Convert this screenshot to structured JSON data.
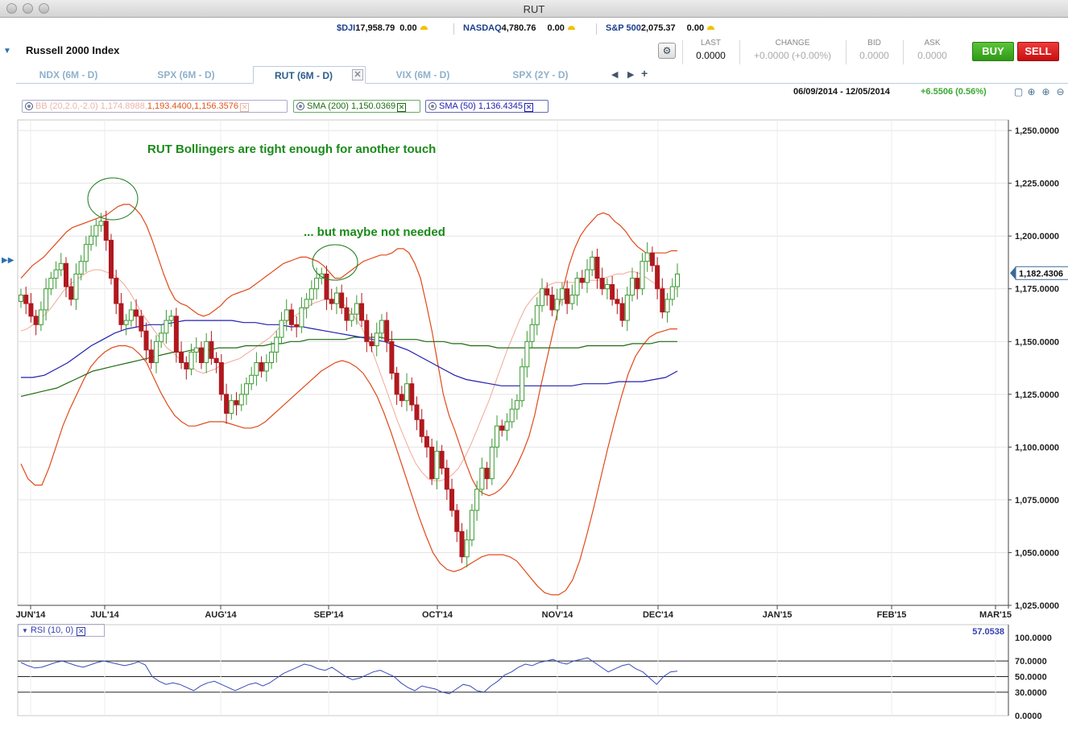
{
  "window": {
    "title": "RUT"
  },
  "tickers": [
    {
      "symbol": "$DJI",
      "value": "17,958.79",
      "change": "0.00"
    },
    {
      "symbol": "NASDAQ",
      "value": "4,780.76",
      "change": "0.00"
    },
    {
      "symbol": "S&P 500",
      "value": "2,075.37",
      "change": "0.00"
    }
  ],
  "header": {
    "index_name": "Russell 2000 Index",
    "last_label": "LAST",
    "last_value": "0.0000",
    "change_label": "CHANGE",
    "change_value": "+0.0000 (+0.00%)",
    "bid_label": "BID",
    "bid_value": "0.0000",
    "ask_label": "ASK",
    "ask_value": "0.0000",
    "buy_label": "BUY",
    "sell_label": "SELL"
  },
  "tabs": [
    {
      "label": "NDX (6M - D)"
    },
    {
      "label": "SPX (6M - D)"
    },
    {
      "label": "RUT (6M - D)",
      "active": true
    },
    {
      "label": "VIX (6M - D)"
    },
    {
      "label": "SPX (2Y - D)"
    }
  ],
  "chart_header": {
    "date_range": "06/09/2014 - 12/05/2014",
    "change": "+6.5506 (0.56%)"
  },
  "indicators": {
    "bb": "BB (20,2.0,-2.0) 1,174.8988,1,193.4400,1,156.3576",
    "bb_name": "BB (20,2.0,-2.0) 1,174.8988,",
    "bb_vals": "1,193.4400,1,156.3576",
    "sma200": "SMA (200) 1,150.0369",
    "sma50": "SMA (50) 1,136.4345"
  },
  "annotations": {
    "note1": "RUT Bollingers are tight enough for another touch",
    "note2": "... but maybe not needed"
  },
  "price_label": "1,182.4306",
  "colors": {
    "up": "#3a9a32",
    "down": "#b0191e",
    "bb": "#e04a1a",
    "bb_mid": "#f0a898",
    "sma200": "#1e6a10",
    "sma50": "#2020b0",
    "rsi": "#3a4ab8",
    "annot": "#1a8a1a"
  },
  "chart_data": {
    "type": "candlestick",
    "ylim": [
      1025,
      1255
    ],
    "y_ticks": [
      "1,250.0000",
      "1,225.0000",
      "1,200.0000",
      "1,175.0000",
      "1,150.0000",
      "1,125.0000",
      "1,100.0000",
      "1,075.0000",
      "1,050.0000",
      "1,025.0000"
    ],
    "x_ticks": [
      "JUN'14",
      "JUL'14",
      "AUG'14",
      "SEP'14",
      "OCT'14",
      "NOV'14",
      "DEC'14",
      "JAN'15",
      "FEB'15",
      "MAR'15"
    ],
    "last_price": 1182.43,
    "closes": [
      1172,
      1168,
      1162,
      1158,
      1165,
      1175,
      1180,
      1184,
      1187,
      1176,
      1170,
      1182,
      1188,
      1196,
      1200,
      1205,
      1207,
      1198,
      1180,
      1168,
      1158,
      1160,
      1165,
      1162,
      1155,
      1146,
      1140,
      1150,
      1154,
      1160,
      1162,
      1145,
      1140,
      1137,
      1145,
      1147,
      1140,
      1150,
      1142,
      1140,
      1125,
      1116,
      1122,
      1120,
      1125,
      1130,
      1134,
      1140,
      1136,
      1140,
      1145,
      1152,
      1160,
      1165,
      1158,
      1157,
      1166,
      1170,
      1175,
      1180,
      1182,
      1170,
      1168,
      1173,
      1166,
      1160,
      1163,
      1168,
      1160,
      1150,
      1148,
      1154,
      1160,
      1150,
      1135,
      1125,
      1122,
      1130,
      1120,
      1113,
      1105,
      1100,
      1085,
      1098,
      1090,
      1080,
      1070,
      1060,
      1048,
      1056,
      1070,
      1080,
      1090,
      1085,
      1100,
      1110,
      1108,
      1112,
      1118,
      1122,
      1138,
      1150,
      1158,
      1167,
      1175,
      1172,
      1165,
      1170,
      1175,
      1168,
      1172,
      1180,
      1178,
      1184,
      1190,
      1180,
      1175,
      1177,
      1170,
      1168,
      1160,
      1172,
      1180,
      1175,
      1188,
      1192,
      1186,
      1175,
      1164,
      1170,
      1176,
      1182
    ],
    "bb_upper": [
      1180,
      1183,
      1186,
      1188,
      1190,
      1193,
      1196,
      1199,
      1202,
      1204,
      1205,
      1206,
      1207,
      1208,
      1209,
      1210,
      1212,
      1214,
      1215,
      1215,
      1213,
      1210,
      1205,
      1198,
      1190,
      1182,
      1175,
      1170,
      1168,
      1167,
      1165,
      1163,
      1162,
      1163,
      1165,
      1167,
      1170,
      1172,
      1173,
      1174,
      1175,
      1177,
      1179,
      1181,
      1183,
      1185,
      1187,
      1188,
      1189,
      1190,
      1190,
      1189,
      1188,
      1186,
      1183,
      1180,
      1180,
      1182,
      1184,
      1186,
      1188,
      1189,
      1190,
      1191,
      1191,
      1192,
      1194,
      1194,
      1192,
      1187,
      1180,
      1168,
      1155,
      1140,
      1125,
      1115,
      1108,
      1100,
      1092,
      1085,
      1080,
      1078,
      1077,
      1078,
      1080,
      1083,
      1087,
      1092,
      1098,
      1105,
      1115,
      1128,
      1140,
      1152,
      1164,
      1175,
      1186,
      1194,
      1200,
      1204,
      1207,
      1210,
      1211,
      1210,
      1207,
      1205,
      1202,
      1198,
      1195,
      1193,
      1191,
      1192,
      1192,
      1192,
      1193,
      1193
    ],
    "bb_mid": [
      1155,
      1156,
      1158,
      1160,
      1163,
      1166,
      1170,
      1174,
      1177,
      1179,
      1181,
      1183,
      1184,
      1184,
      1183,
      1182,
      1180,
      1177,
      1173,
      1168,
      1163,
      1159,
      1155,
      1151,
      1147,
      1145,
      1142,
      1140,
      1138,
      1136,
      1135,
      1136,
      1137,
      1139,
      1140,
      1141,
      1142,
      1144,
      1146,
      1148,
      1150,
      1152,
      1155,
      1158,
      1160,
      1162,
      1164,
      1166,
      1168,
      1169,
      1170,
      1170,
      1170,
      1168,
      1165,
      1161,
      1157,
      1151,
      1144,
      1136,
      1128,
      1120,
      1112,
      1105,
      1098,
      1092,
      1088,
      1085,
      1084,
      1084,
      1085,
      1087,
      1090,
      1095,
      1101,
      1108,
      1115,
      1122,
      1130,
      1138,
      1146,
      1153,
      1160,
      1166,
      1170,
      1173,
      1175,
      1177,
      1178,
      1178,
      1178,
      1178,
      1178,
      1179,
      1179,
      1179,
      1180,
      1181,
      1182,
      1182,
      1183,
      1183,
      1182,
      1180,
      1178,
      1176,
      1175,
      1175,
      1175
    ],
    "bb_lower": [
      1092,
      1085,
      1082,
      1082,
      1090,
      1100,
      1110,
      1118,
      1125,
      1132,
      1138,
      1142,
      1145,
      1147,
      1148,
      1148,
      1147,
      1144,
      1140,
      1133,
      1126,
      1120,
      1115,
      1112,
      1110,
      1110,
      1111,
      1112,
      1112,
      1112,
      1111,
      1110,
      1109,
      1109,
      1110,
      1112,
      1115,
      1118,
      1121,
      1124,
      1127,
      1130,
      1133,
      1136,
      1138,
      1140,
      1141,
      1140,
      1138,
      1135,
      1130,
      1124,
      1116,
      1107,
      1097,
      1087,
      1077,
      1067,
      1058,
      1050,
      1045,
      1042,
      1041,
      1042,
      1044,
      1046,
      1048,
      1049,
      1049,
      1049,
      1048,
      1046,
      1042,
      1038,
      1034,
      1031,
      1030,
      1030,
      1032,
      1037,
      1046,
      1058,
      1071,
      1085,
      1099,
      1112,
      1124,
      1135,
      1143,
      1148,
      1152,
      1154,
      1155,
      1156,
      1156
    ],
    "sma200": [
      1124,
      1125,
      1126,
      1127,
      1128,
      1130,
      1132,
      1134,
      1136,
      1137,
      1138,
      1139,
      1140,
      1141,
      1142,
      1143,
      1144,
      1145,
      1145,
      1146,
      1146,
      1146,
      1147,
      1147,
      1147,
      1148,
      1148,
      1148,
      1149,
      1149,
      1150,
      1150,
      1151,
      1151,
      1151,
      1151,
      1151,
      1152,
      1152,
      1152,
      1152,
      1151,
      1151,
      1151,
      1151,
      1150,
      1150,
      1150,
      1149,
      1149,
      1148,
      1148,
      1148,
      1147,
      1147,
      1147,
      1147,
      1147,
      1147,
      1147,
      1147,
      1147,
      1147,
      1148,
      1148,
      1148,
      1148,
      1148,
      1149,
      1149,
      1149,
      1150,
      1150,
      1150
    ],
    "sma50": [
      1133,
      1133,
      1134,
      1137,
      1140,
      1144,
      1148,
      1151,
      1154,
      1156,
      1157,
      1158,
      1158,
      1159,
      1160,
      1160,
      1160,
      1160,
      1160,
      1159,
      1159,
      1158,
      1158,
      1157,
      1157,
      1156,
      1155,
      1154,
      1153,
      1152,
      1151,
      1150,
      1148,
      1146,
      1143,
      1140,
      1137,
      1134,
      1132,
      1131,
      1130,
      1129,
      1129,
      1129,
      1129,
      1129,
      1129,
      1129,
      1130,
      1130,
      1130,
      1131,
      1131,
      1131,
      1132,
      1133,
      1136
    ],
    "rsi_value": "57.0538",
    "rsi_label": "RSI (10, 0)",
    "rsi_ticks": [
      "100.0000",
      "70.0000",
      "50.0000",
      "30.0000",
      "0.0000"
    ],
    "rsi": [
      68,
      64,
      61,
      62,
      65,
      68,
      70,
      67,
      64,
      62,
      65,
      68,
      70,
      68,
      66,
      64,
      66,
      69,
      65,
      50,
      44,
      40,
      42,
      40,
      36,
      32,
      38,
      42,
      44,
      40,
      36,
      32,
      36,
      40,
      42,
      38,
      42,
      48,
      54,
      58,
      62,
      66,
      64,
      60,
      58,
      62,
      56,
      50,
      46,
      48,
      52,
      56,
      58,
      54,
      50,
      42,
      36,
      32,
      38,
      36,
      34,
      30,
      28,
      34,
      40,
      38,
      32,
      30,
      38,
      44,
      52,
      56,
      62,
      66,
      64,
      68,
      70,
      72,
      68,
      66,
      70,
      72,
      74,
      68,
      62,
      56,
      60,
      64,
      66,
      60,
      56,
      48,
      40,
      50,
      56,
      57
    ]
  }
}
